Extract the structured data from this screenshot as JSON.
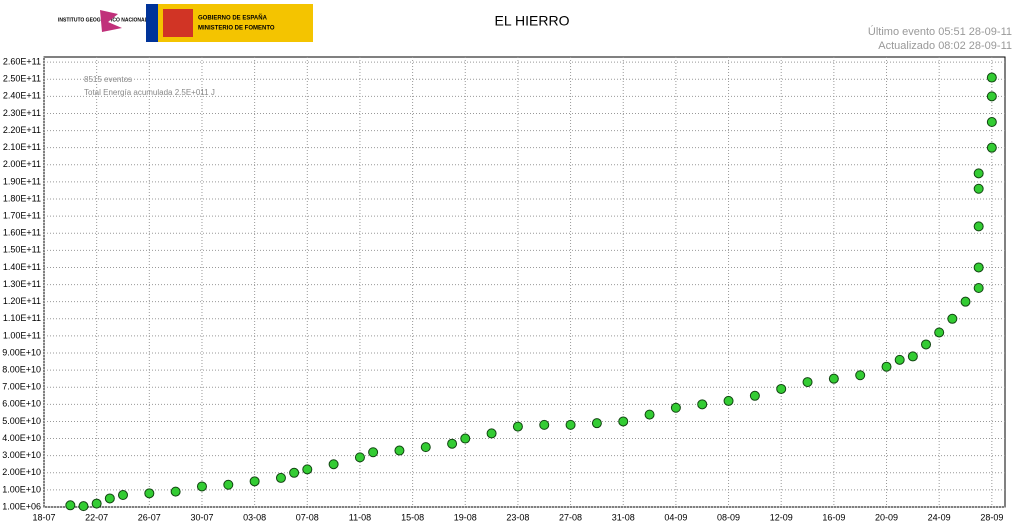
{
  "header": {
    "institute": "INSTITUTO GEOGRÁFICO NACIONAL",
    "government": "GOBIERNO DE ESPAÑA",
    "ministry": "MINISTERIO DE FOMENTO",
    "last_event": "Último evento  05:51 28-09-11",
    "updated": "Actualizado   08:02 28-09-11"
  },
  "chart_data": {
    "type": "scatter",
    "title": "EL HIERRO",
    "annotations": [
      "8515 eventos",
      "Total Energía acumulada 2.5E+011 J"
    ],
    "color": "#33cc33",
    "grid": true,
    "xlim": [
      "18-07",
      "29-09"
    ],
    "xticks": [
      "18-07",
      "22-07",
      "26-07",
      "30-07",
      "03-08",
      "07-08",
      "11-08",
      "15-08",
      "19-08",
      "23-08",
      "27-08",
      "31-08",
      "04-09",
      "08-09",
      "12-09",
      "16-09",
      "20-09",
      "24-09",
      "28-09"
    ],
    "ylim": [
      1000000,
      263000000000
    ],
    "yticks": [
      {
        "value": 1000000,
        "label": "1.00E+06"
      },
      {
        "value": 10000000000,
        "label": "1.00E+10"
      },
      {
        "value": 20000000000,
        "label": "2.00E+10"
      },
      {
        "value": 30000000000,
        "label": "3.00E+10"
      },
      {
        "value": 40000000000,
        "label": "4.00E+10"
      },
      {
        "value": 50000000000,
        "label": "5.00E+10"
      },
      {
        "value": 60000000000,
        "label": "6.00E+10"
      },
      {
        "value": 70000000000,
        "label": "7.00E+10"
      },
      {
        "value": 80000000000,
        "label": "8.00E+10"
      },
      {
        "value": 90000000000,
        "label": "9.00E+10"
      },
      {
        "value": 100000000000,
        "label": "1.00E+11"
      },
      {
        "value": 110000000000,
        "label": "1.10E+11"
      },
      {
        "value": 120000000000,
        "label": "1.20E+11"
      },
      {
        "value": 130000000000,
        "label": "1.30E+11"
      },
      {
        "value": 140000000000,
        "label": "1.40E+11"
      },
      {
        "value": 150000000000,
        "label": "1.50E+11"
      },
      {
        "value": 160000000000,
        "label": "1.60E+11"
      },
      {
        "value": 170000000000,
        "label": "1.70E+11"
      },
      {
        "value": 180000000000,
        "label": "1.80E+11"
      },
      {
        "value": 190000000000,
        "label": "1.90E+11"
      },
      {
        "value": 200000000000,
        "label": "2.00E+11"
      },
      {
        "value": 210000000000,
        "label": "2.10E+11"
      },
      {
        "value": 220000000000,
        "label": "2.20E+11"
      },
      {
        "value": 230000000000,
        "label": "2.30E+11"
      },
      {
        "value": 240000000000,
        "label": "2.40E+11"
      },
      {
        "value": 250000000000,
        "label": "2.50E+11"
      },
      {
        "value": 260000000000,
        "label": "2.60E+11"
      }
    ],
    "x": [
      "20-07",
      "21-07",
      "22-07",
      "23-07",
      "24-07",
      "26-07",
      "28-07",
      "30-07",
      "01-08",
      "03-08",
      "05-08",
      "06-08",
      "07-08",
      "09-08",
      "11-08",
      "12-08",
      "14-08",
      "16-08",
      "18-08",
      "19-08",
      "21-08",
      "23-08",
      "25-08",
      "27-08",
      "29-08",
      "31-08",
      "02-09",
      "04-09",
      "06-09",
      "08-09",
      "10-09",
      "12-09",
      "14-09",
      "16-09",
      "18-09",
      "20-09",
      "21-09",
      "22-09",
      "23-09",
      "24-09",
      "25-09",
      "26-09",
      "27-09",
      "27-09",
      "27-09",
      "27-09",
      "27-09",
      "28-09",
      "28-09",
      "28-09",
      "28-09"
    ],
    "values": [
      1000000000,
      500000000,
      2000000000,
      5000000000,
      7000000000,
      8000000000,
      9000000000,
      12000000000,
      13000000000,
      15000000000,
      17000000000,
      20000000000,
      22000000000,
      25000000000,
      29000000000,
      32000000000,
      33000000000,
      35000000000,
      37000000000,
      40000000000,
      43000000000,
      47000000000,
      48000000000,
      48000000000,
      49000000000,
      50000000000,
      54000000000,
      58000000000,
      60000000000,
      62000000000,
      65000000000,
      69000000000,
      73000000000,
      75000000000,
      77000000000,
      82000000000,
      86000000000,
      88000000000,
      95000000000,
      102000000000,
      110000000000,
      120000000000,
      128000000000,
      140000000000,
      164000000000,
      186000000000,
      195000000000,
      210000000000,
      225000000000,
      240000000000,
      251000000000
    ]
  }
}
